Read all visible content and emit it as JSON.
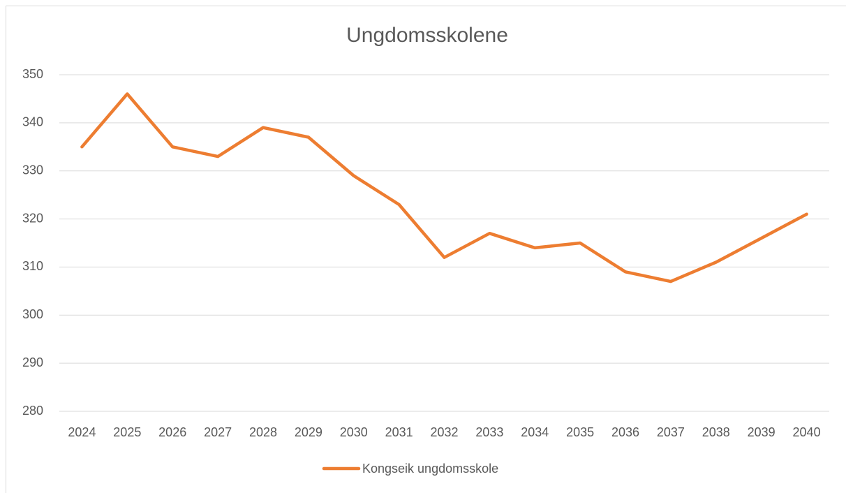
{
  "chart_data": {
    "type": "line",
    "title": "Ungdomsskolene",
    "categories": [
      "2024",
      "2025",
      "2026",
      "2027",
      "2028",
      "2029",
      "2030",
      "2031",
      "2032",
      "2033",
      "2034",
      "2035",
      "2036",
      "2037",
      "2038",
      "2039",
      "2040"
    ],
    "series": [
      {
        "name": "Kongseik ungdomsskole",
        "color": "#ed7d31",
        "values": [
          335,
          346,
          335,
          333,
          339,
          337,
          329,
          323,
          312,
          317,
          314,
          315,
          309,
          307,
          311,
          316,
          321
        ]
      }
    ],
    "ylim": [
      280,
      350
    ],
    "yticks": [
      280,
      290,
      300,
      310,
      320,
      330,
      340,
      350
    ],
    "grid": true,
    "legend": "bottom"
  }
}
